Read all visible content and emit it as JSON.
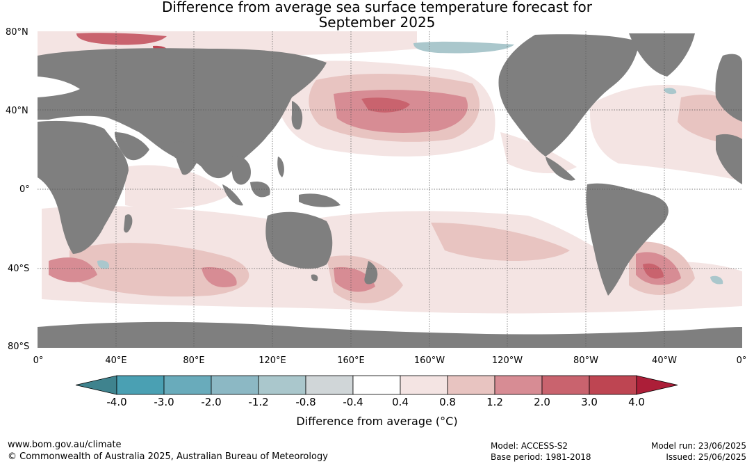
{
  "title_line1": "Difference from average sea surface temperature forecast for",
  "title_line2": "September 2025",
  "lat_labels": [
    "80°N",
    "40°N",
    "0°",
    "40°S",
    "80°S"
  ],
  "lon_labels": [
    "0°",
    "40°E",
    "80°E",
    "120°E",
    "160°E",
    "160°W",
    "120°W",
    "80°W",
    "40°W",
    "0°"
  ],
  "colorbar": {
    "title": "Difference from average (°C)",
    "ticks": [
      "-4.0",
      "-3.0",
      "-2.0",
      "-1.2",
      "-0.8",
      "-0.4",
      "0.4",
      "0.8",
      "1.2",
      "2.0",
      "3.0",
      "4.0"
    ],
    "colors": [
      "#3f838e",
      "#4aa0b3",
      "#69abbb",
      "#8cb8c4",
      "#aac7cc",
      "#d0d6d8",
      "#ffffff",
      "#f4e4e3",
      "#e8c4c1",
      "#d78c94",
      "#c9636e",
      "#be4552",
      "#ac1e38"
    ]
  },
  "land_color": "#7f7f7f",
  "footer": {
    "url": "www.bom.gov.au/climate",
    "copyright": "© Commonwealth of Australia 2025, Australian Bureau of Meteorology",
    "model": "Model: ACCESS-S2",
    "base_period": "Base period: 1981-2018",
    "model_run": "Model run: 23/06/2025",
    "issued": "Issued: 25/06/2025"
  }
}
